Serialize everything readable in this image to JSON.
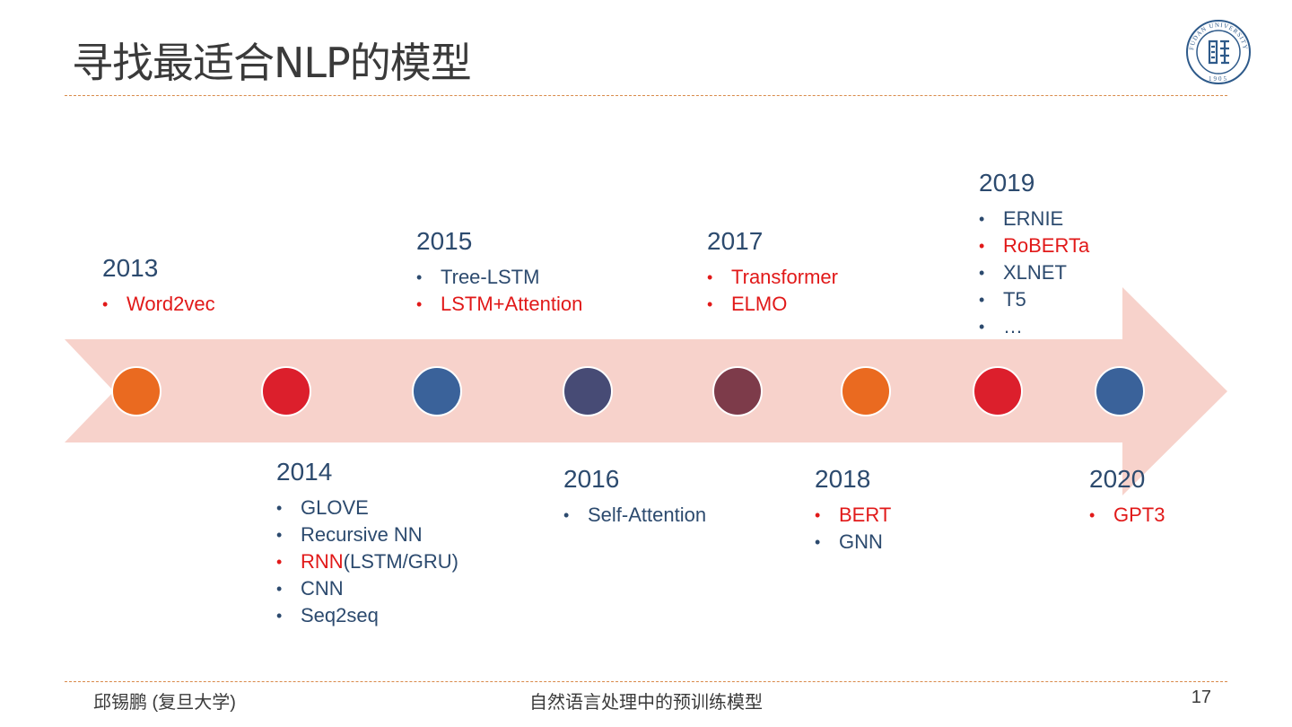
{
  "title": "寻找最适合NLP的模型",
  "logo": {
    "icon": "fudan-university-seal-icon",
    "text": "FUDAN UNIVERSITY",
    "year": "1905",
    "color": "#2e5a8a"
  },
  "arrow_color": "#f7d2cb",
  "nodes": [
    {
      "color": "#ea6a20"
    },
    {
      "color": "#dc1f2c"
    },
    {
      "color": "#3a629a"
    },
    {
      "color": "#474b75"
    },
    {
      "color": "#7d3b4a"
    },
    {
      "color": "#ea6a20"
    },
    {
      "color": "#dc1f2c"
    },
    {
      "color": "#3a629a"
    }
  ],
  "timeline": {
    "y2013": {
      "year": "2013",
      "items": [
        "Word2vec"
      ]
    },
    "y2014": {
      "year": "2014",
      "items": [
        "GLOVE",
        "Recursive NN",
        "RNN",
        "(LSTM/GRU)",
        "CNN",
        "Seq2seq"
      ]
    },
    "y2015": {
      "year": "2015",
      "items": [
        "Tree-LSTM",
        "LSTM+Attention"
      ]
    },
    "y2016": {
      "year": "2016",
      "items": [
        "Self-Attention"
      ]
    },
    "y2017": {
      "year": "2017",
      "items": [
        "Transformer",
        "ELMO"
      ]
    },
    "y2018": {
      "year": "2018",
      "items": [
        "BERT",
        "GNN"
      ]
    },
    "y2019": {
      "year": "2019",
      "items": [
        "ERNIE",
        "RoBERTa",
        "XLNET",
        "T5",
        "…"
      ]
    },
    "y2020": {
      "year": "2020",
      "items": [
        "GPT3"
      ]
    }
  },
  "highlight_color": "#e11919",
  "text_color": "#2c4a6e",
  "footer": {
    "author": "邱锡鹏 (复旦大学)",
    "center": "自然语言处理中的预训练模型",
    "page": "17"
  }
}
